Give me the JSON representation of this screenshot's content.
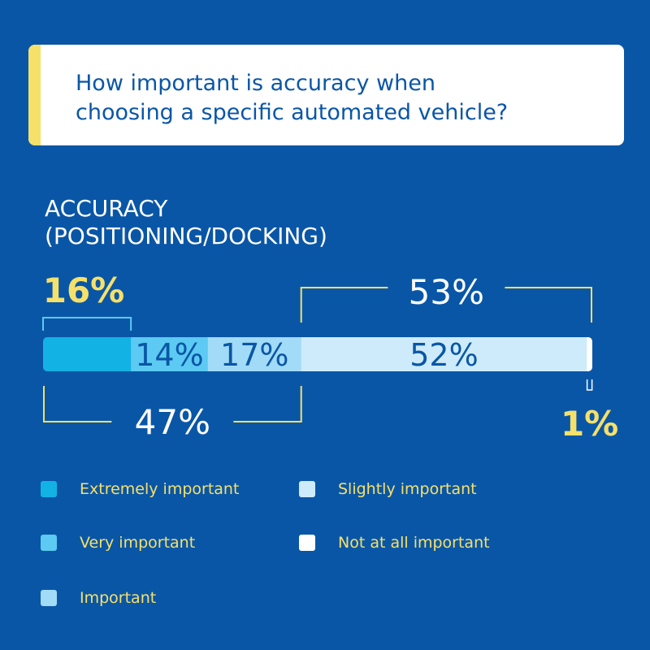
{
  "header": {
    "title_line1": "How important is accuracy when",
    "title_line2": "choosing a specific automated vehicle?"
  },
  "section": {
    "title_line1": "ACCURACY",
    "title_line2": "(POSITIONING/DOCKING)"
  },
  "colors": {
    "background": "#0a56a6",
    "accent_yellow": "#f5e06a",
    "extremely_important": "#13b2e4",
    "very_important": "#5ccaf2",
    "important": "#a2dbf7",
    "slightly_important": "#cdebfa",
    "not_at_all_important": "#ffffff"
  },
  "chart_data": {
    "type": "bar",
    "orientation": "horizontal-stacked",
    "categories": [
      "ACCURACY (POSITIONING/DOCKING)"
    ],
    "series": [
      {
        "name": "Extremely important",
        "values": [
          16
        ],
        "label": "16%",
        "color": "#13b2e4"
      },
      {
        "name": "Very important",
        "values": [
          14
        ],
        "label": "14%",
        "color": "#5ccaf2"
      },
      {
        "name": "Important",
        "values": [
          17
        ],
        "label": "17%",
        "color": "#a2dbf7"
      },
      {
        "name": "Slightly important",
        "values": [
          52
        ],
        "label": "52%",
        "color": "#cdebfa"
      },
      {
        "name": "Not at all important",
        "values": [
          1
        ],
        "label": "1%",
        "color": "#ffffff"
      }
    ],
    "group_labels": {
      "extremely": "16%",
      "important_total": "47%",
      "not_important_total": "53%",
      "not_at_all": "1%"
    },
    "legend": [
      {
        "label": "Extremely important",
        "color": "#13b2e4"
      },
      {
        "label": "Slightly important",
        "color": "#cdebfa"
      },
      {
        "label": "Very important",
        "color": "#5ccaf2"
      },
      {
        "label": "Not at all important",
        "color": "#ffffff"
      },
      {
        "label": "Important",
        "color": "#a2dbf7"
      }
    ]
  }
}
